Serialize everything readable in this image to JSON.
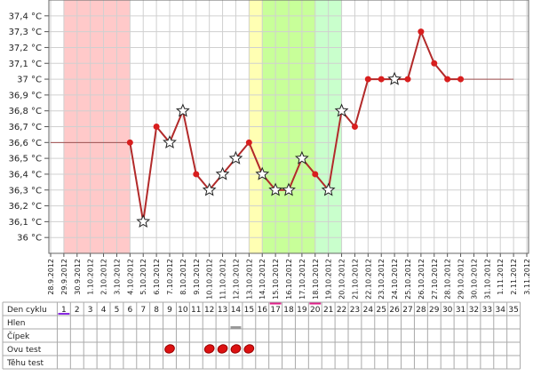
{
  "chart_data": {
    "type": "line",
    "categories": [
      "28.9.2012",
      "29.9.2012",
      "30.9.2012",
      "1.10.2012",
      "2.10.2012",
      "3.10.2012",
      "4.10.2012",
      "5.10.2012",
      "6.10.2012",
      "7.10.2012",
      "8.10.2012",
      "9.10.2012",
      "10.10.2012",
      "11.10.2012",
      "12.10.2012",
      "13.10.2012",
      "14.10.2012",
      "15.10.2012",
      "16.10.2012",
      "17.10.2012",
      "18.10.2012",
      "19.10.2012",
      "20.10.2012",
      "21.10.2012",
      "22.10.2012",
      "23.10.2012",
      "24.10.2012",
      "25.10.2012",
      "26.10.2012",
      "27.10.2012",
      "28.10.2012",
      "29.10.2012",
      "30.10.2012",
      "31.10.2012",
      "1.11.2012",
      "2.11.2012",
      "3.11.2012"
    ],
    "series": [
      {
        "color": "#b22a2a",
        "values": [
          null,
          null,
          null,
          null,
          null,
          null,
          36.6,
          36.1,
          36.7,
          36.6,
          36.8,
          36.4,
          36.3,
          36.4,
          36.5,
          36.6,
          36.4,
          36.3,
          36.3,
          36.5,
          36.4,
          36.3,
          36.8,
          36.7,
          37.0,
          37.0,
          37.0,
          37.0,
          37.3,
          37.1,
          37.0,
          37.0,
          null,
          null,
          null,
          null,
          null
        ],
        "markers": [
          null,
          null,
          null,
          null,
          null,
          null,
          "dot",
          "star",
          "dot",
          "star",
          "star",
          "dot",
          "star",
          "star",
          "star",
          "dot",
          "star",
          "star",
          "star",
          "star",
          "dot",
          "star",
          "star",
          "dot",
          "dot",
          "dot",
          "star",
          "dot",
          "dot",
          "dot",
          "dot",
          "dot",
          null,
          null,
          null,
          null,
          null
        ]
      }
    ],
    "ylim": [
      35.9,
      37.5
    ],
    "yticks": [
      {
        "value": 36,
        "label": "36 °C"
      },
      {
        "value": 36.1,
        "label": "36,1 °C"
      },
      {
        "value": 36.2,
        "label": "36,2 °C"
      },
      {
        "value": 36.3,
        "label": "36,3 °C"
      },
      {
        "value": 36.4,
        "label": "36,4 °C"
      },
      {
        "value": 36.5,
        "label": "36,5 °C"
      },
      {
        "value": 36.6,
        "label": "36,6 °C"
      },
      {
        "value": 36.7,
        "label": "36,7 °C"
      },
      {
        "value": 36.8,
        "label": "36,8 °C"
      },
      {
        "value": 36.9,
        "label": "36,9 °C"
      },
      {
        "value": 37,
        "label": "37 °C"
      },
      {
        "value": 37.1,
        "label": "37,1 °C"
      },
      {
        "value": 37.2,
        "label": "37,2 °C"
      },
      {
        "value": 37.3,
        "label": "37,3 °C"
      },
      {
        "value": 37.4,
        "label": "37,4 °C"
      }
    ],
    "grid": true,
    "bands": [
      {
        "start": 1,
        "end": 6,
        "color": "#ffc9c9"
      },
      {
        "start": 15,
        "end": 16,
        "color": "#ffffb3"
      },
      {
        "start": 16,
        "end": 20,
        "color": "#c8ff99"
      },
      {
        "start": 20,
        "end": 22,
        "color": "#c9ffcc"
      }
    ]
  },
  "table": {
    "row_labels": [
      "Den cyklu",
      "Hlen",
      "Čípek",
      "Ovu test",
      "Těhu test"
    ],
    "days": [
      1,
      2,
      3,
      4,
      5,
      6,
      7,
      8,
      9,
      10,
      11,
      12,
      13,
      14,
      15,
      16,
      17,
      18,
      19,
      20,
      21,
      22,
      23,
      24,
      25,
      26,
      27,
      28,
      29,
      30,
      31,
      32,
      33,
      34,
      35
    ],
    "period_start_days": [
      1
    ],
    "marked_days": [
      17,
      20
    ],
    "cervix_days": [
      14
    ],
    "ovu_test_days": [
      9,
      12,
      13,
      14,
      15
    ]
  }
}
